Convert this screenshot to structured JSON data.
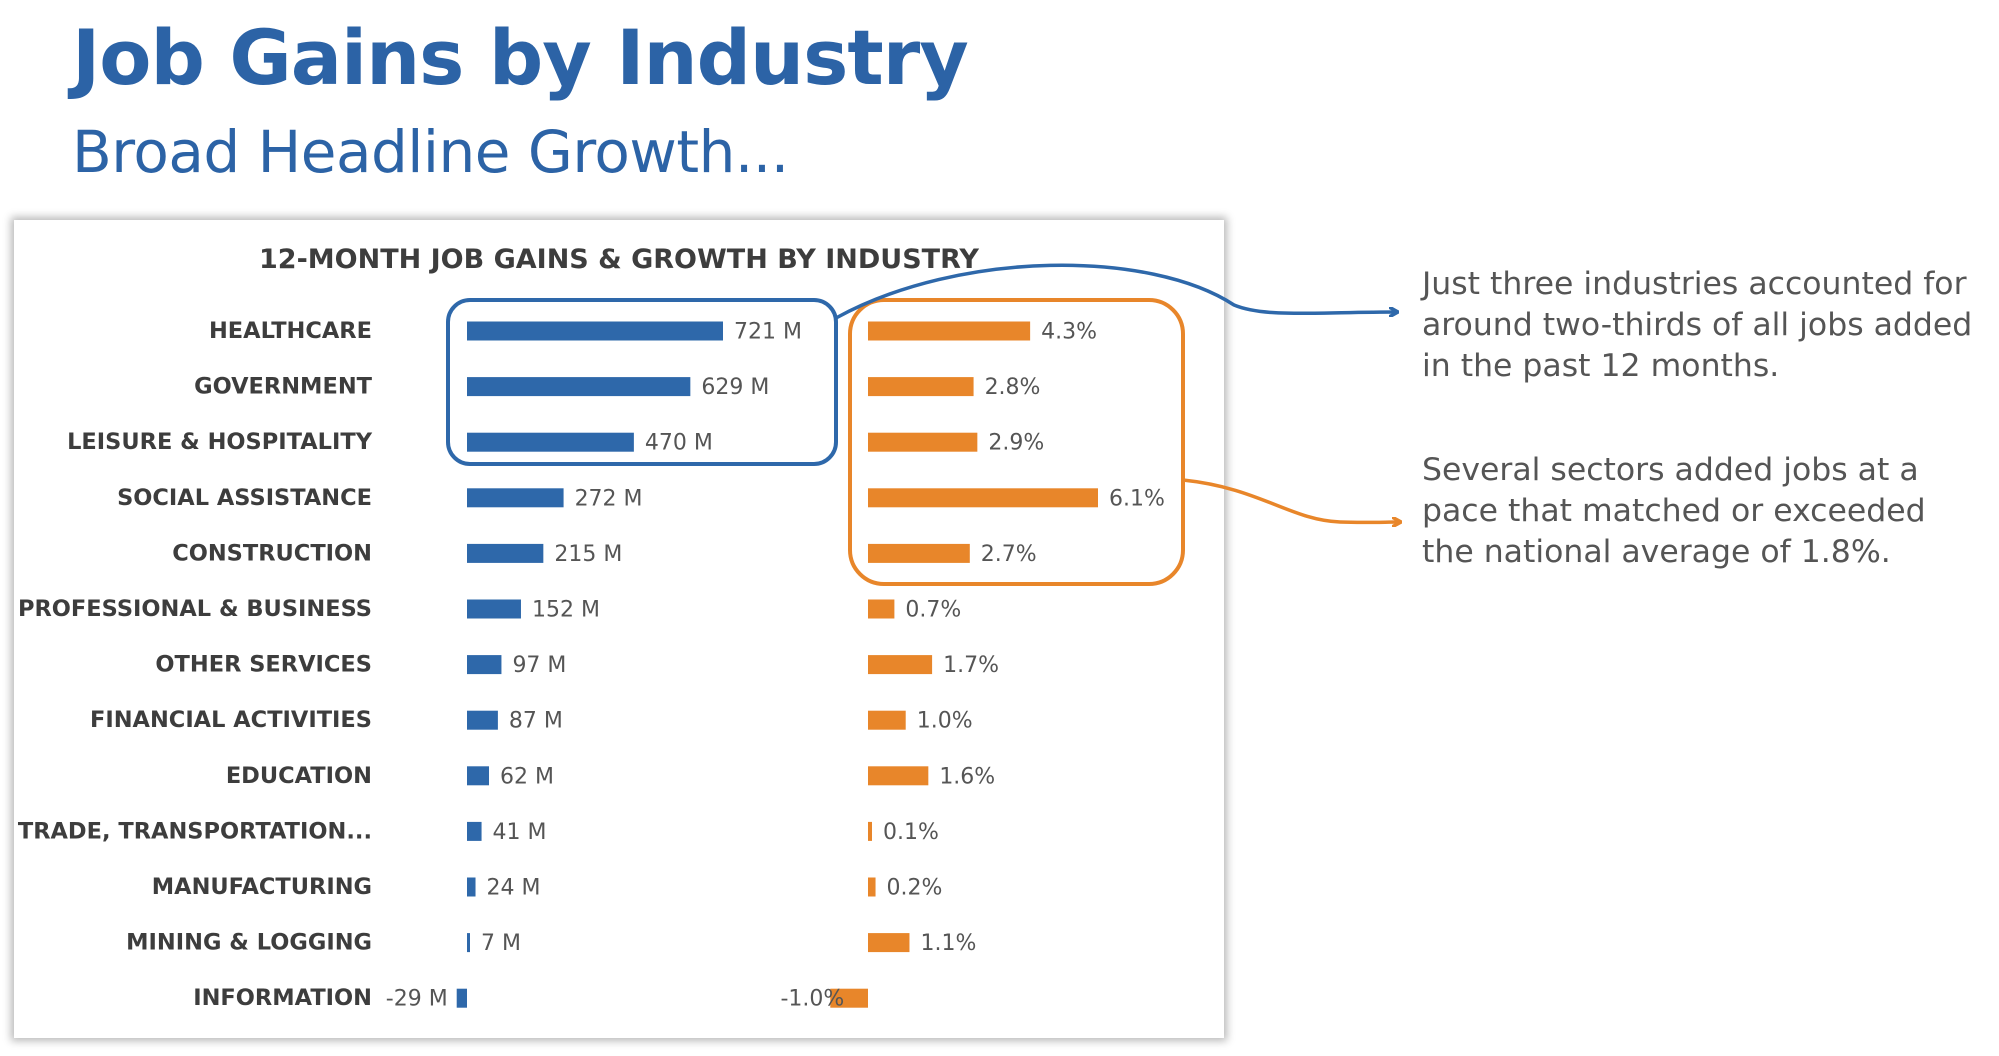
{
  "slide": {
    "title": "Job Gains by Industry",
    "subtitle": "Broad Headline Growth..."
  },
  "annotations": [
    "Just three industries accounted for around two-thirds of all jobs added in the past 12 months.",
    "Several sectors added jobs at a pace that matched or exceeded the national average of 1.8%."
  ],
  "colors": {
    "gains": "#2e68aa",
    "growth": "#e8862a",
    "title": "#2c63a6",
    "label": "#3d3d3d",
    "annotation_text": "#555555"
  },
  "chart_data": {
    "type": "bar",
    "orientation": "horizontal",
    "title": "12-MONTH JOB GAINS & GROWTH BY INDUSTRY",
    "categories": [
      "HEALTHCARE",
      "GOVERNMENT",
      "LEISURE & HOSPITALITY",
      "SOCIAL ASSISTANCE",
      "CONSTRUCTION",
      "PROFESSIONAL & BUSINESS",
      "OTHER SERVICES",
      "FINANCIAL ACTIVITIES",
      "EDUCATION",
      "TRADE, TRANSPORTATION...",
      "MANUFACTURING",
      "MINING & LOGGING",
      "INFORMATION"
    ],
    "series": [
      {
        "values": [
          721,
          629,
          470,
          272,
          215,
          152,
          97,
          87,
          62,
          41,
          24,
          7,
          -29
        ],
        "labels": [
          "721 M",
          "629 M",
          "470 M",
          "272 M",
          "215 M",
          "152 M",
          "97 M",
          "87 M",
          "62 M",
          "41 M",
          "24 M",
          "7 M",
          "-29 M"
        ]
      },
      {
        "values": [
          4.3,
          2.8,
          2.9,
          6.1,
          2.7,
          0.7,
          1.7,
          1.0,
          1.6,
          0.1,
          0.2,
          1.1,
          -1.0
        ],
        "labels": [
          "4.3%",
          "2.8%",
          "2.9%",
          "6.1%",
          "2.7%",
          "0.7%",
          "1.7%",
          "1.0%",
          "1.6%",
          "0.1%",
          "0.2%",
          "1.1%",
          "-1.0%"
        ]
      }
    ],
    "grid": false,
    "legend": "none",
    "highlights": [
      {
        "series": 0,
        "categories": [
          "HEALTHCARE",
          "GOVERNMENT",
          "LEISURE & HOSPITALITY"
        ]
      },
      {
        "series": 1,
        "categories": [
          "HEALTHCARE",
          "GOVERNMENT",
          "LEISURE & HOSPITALITY",
          "SOCIAL ASSISTANCE",
          "CONSTRUCTION"
        ]
      }
    ]
  }
}
